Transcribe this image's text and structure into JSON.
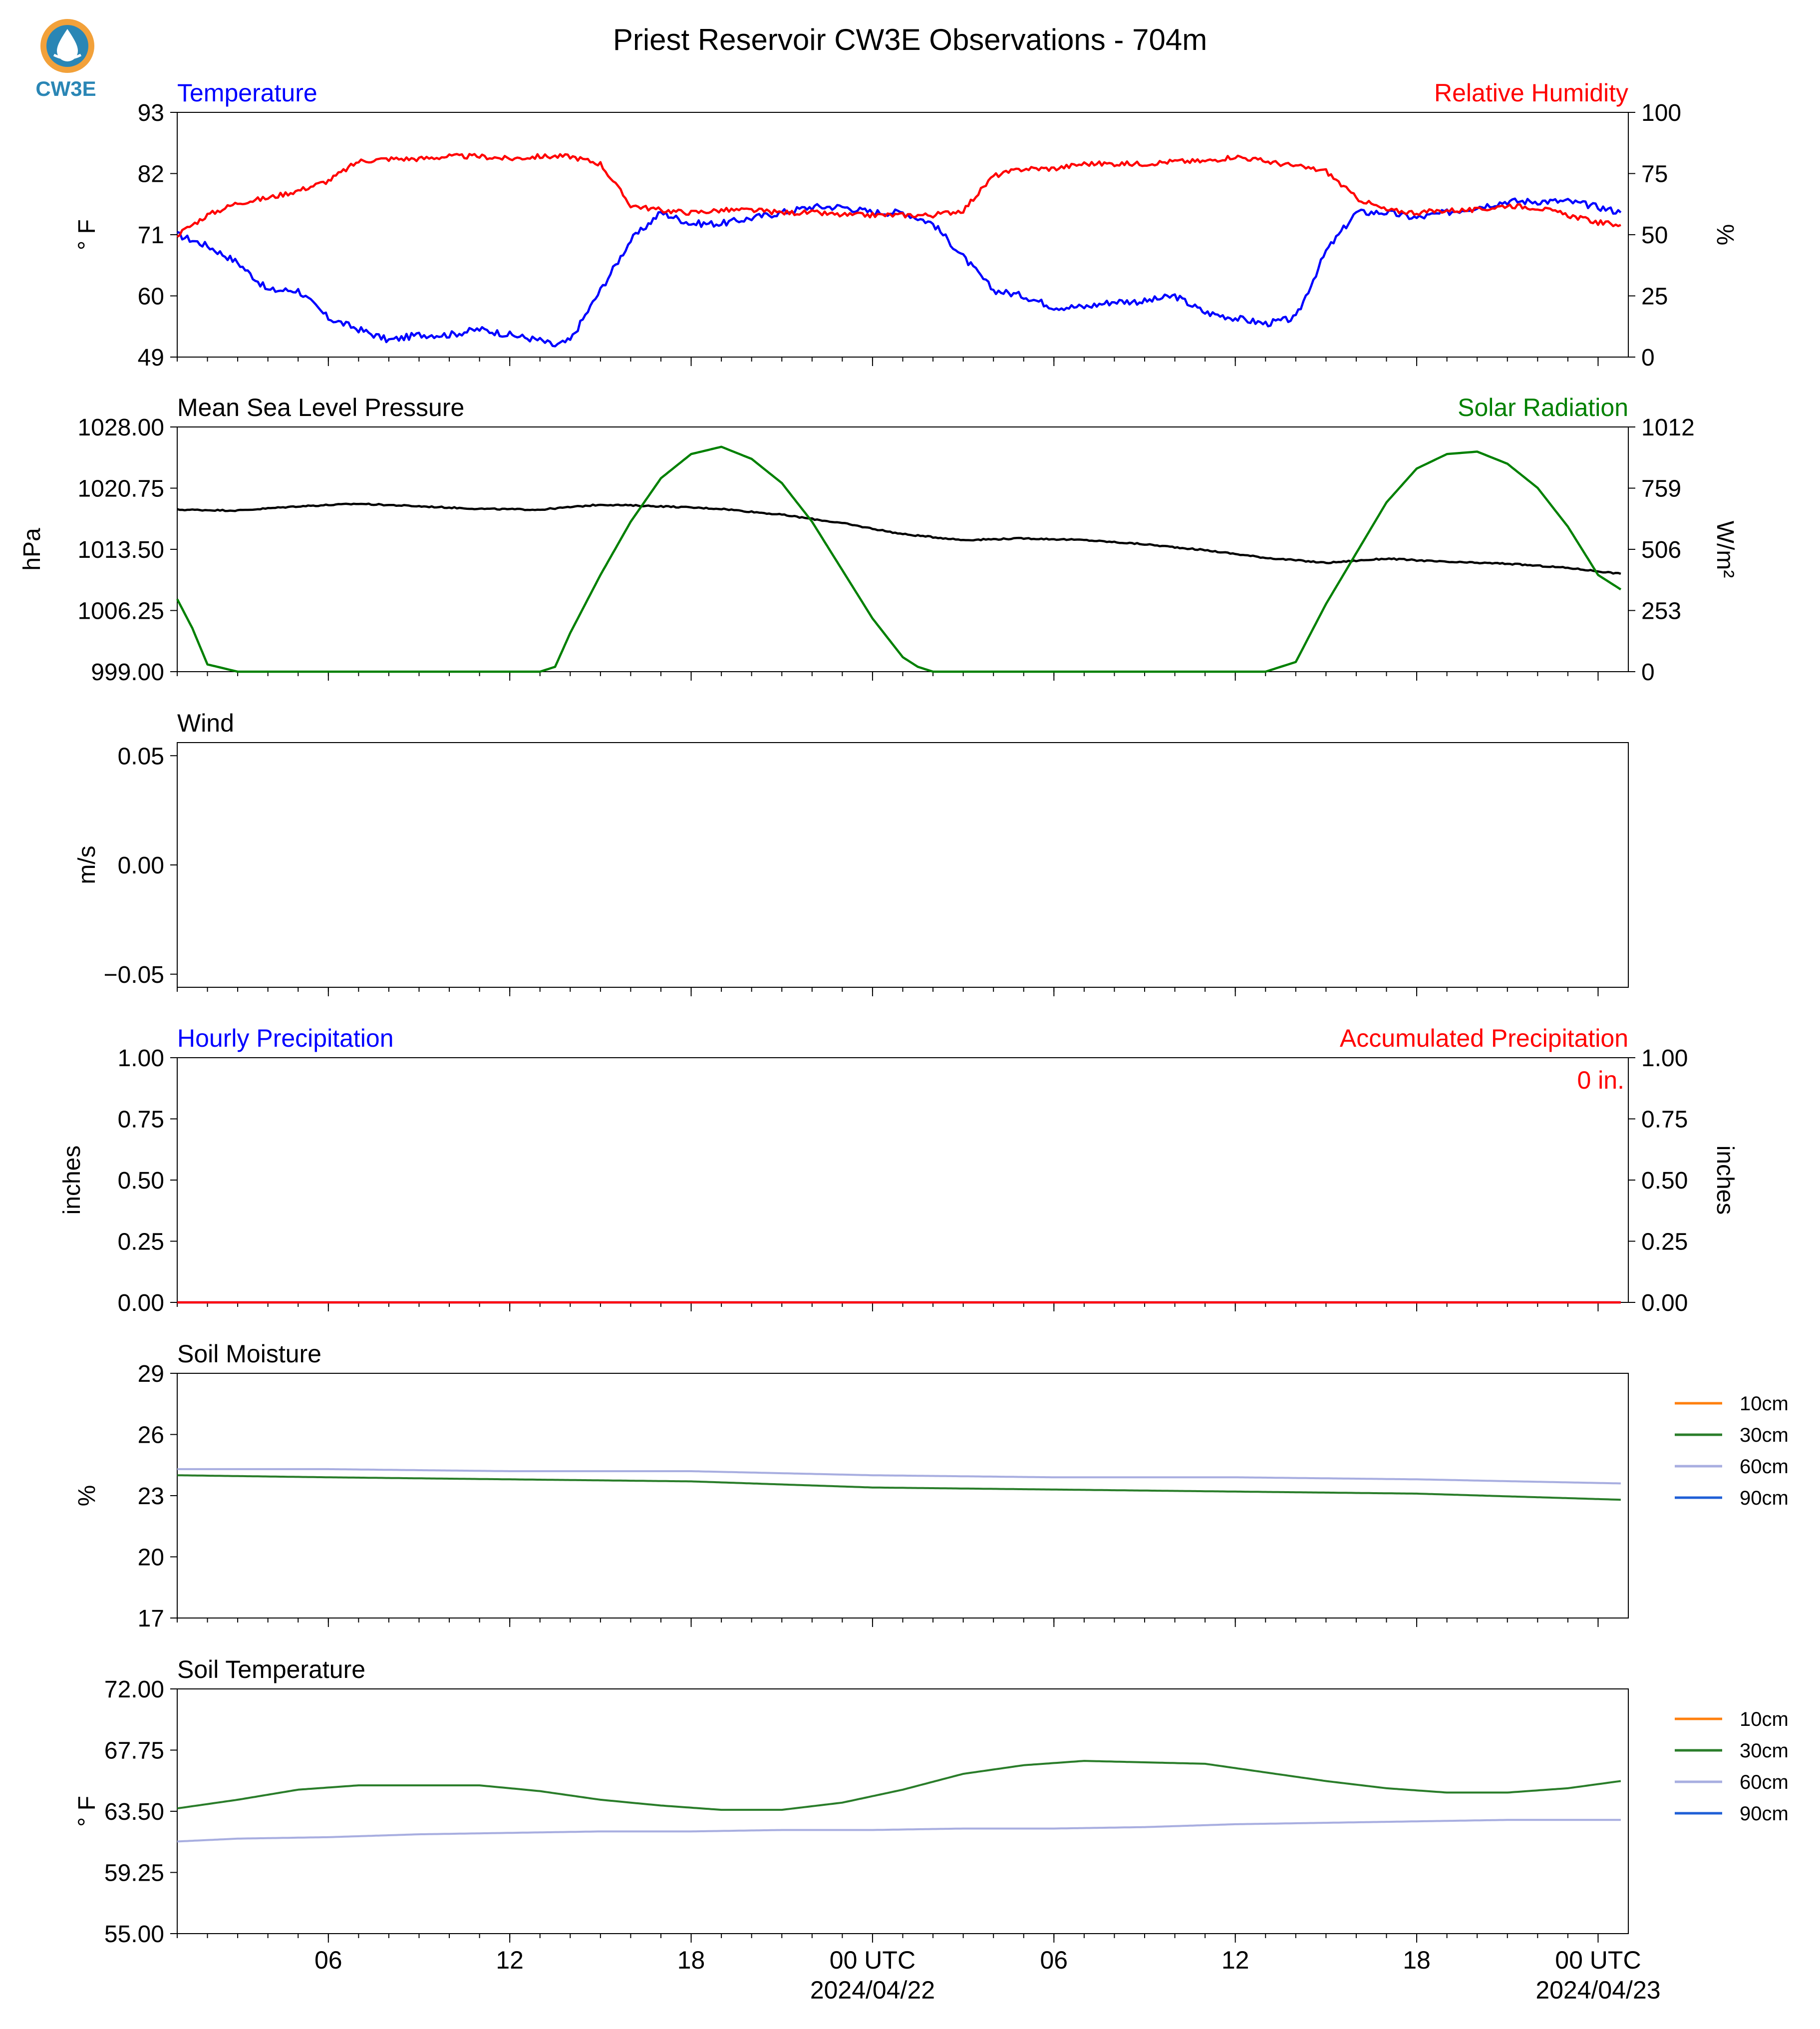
{
  "title": "Priest Reservoir CW3E Observations - 704m",
  "logo": {
    "text": "CW3E",
    "icon": "cw3e-logo-icon",
    "color_orange": "#f2a13a",
    "color_blue": "#2a86b5"
  },
  "x_axis": {
    "start": "2024-04-21T01:00Z",
    "end": "2024-04-23T01:00Z",
    "ticks": [
      {
        "t": "2024-04-21T06:00Z",
        "label": "06",
        "label2": ""
      },
      {
        "t": "2024-04-21T12:00Z",
        "label": "12",
        "label2": ""
      },
      {
        "t": "2024-04-21T18:00Z",
        "label": "18",
        "label2": ""
      },
      {
        "t": "2024-04-22T00:00Z",
        "label": "00 UTC",
        "label2": "2024/04/22"
      },
      {
        "t": "2024-04-22T06:00Z",
        "label": "06",
        "label2": ""
      },
      {
        "t": "2024-04-22T12:00Z",
        "label": "12",
        "label2": ""
      },
      {
        "t": "2024-04-22T18:00Z",
        "label": "18",
        "label2": ""
      },
      {
        "t": "2024-04-23T00:00Z",
        "label": "00 UTC",
        "label2": "2024/04/23"
      }
    ]
  },
  "chart_data": [
    {
      "type": "line",
      "title_left": "Temperature",
      "title_left_color": "#0000ff",
      "title_right": "Relative Humidity",
      "title_right_color": "#ff0000",
      "ylabel": "° F",
      "ylabel_right": "%",
      "ylim": [
        49,
        93
      ],
      "ylim_right": [
        0,
        100
      ],
      "yticks": [
        "93",
        "82",
        "71",
        "60",
        "49"
      ],
      "yticks_right": [
        "100",
        "75",
        "50",
        "25",
        "0"
      ],
      "series": [
        {
          "axis": "left",
          "color": "#0000ff",
          "x": [
            "2024-04-21T01:00Z",
            "2024-04-21T02:00Z",
            "2024-04-21T03:00Z",
            "2024-04-21T04:00Z",
            "2024-04-21T05:00Z",
            "2024-04-21T06:00Z",
            "2024-04-21T07:00Z",
            "2024-04-21T08:00Z",
            "2024-04-21T09:00Z",
            "2024-04-21T10:00Z",
            "2024-04-21T11:00Z",
            "2024-04-21T12:00Z",
            "2024-04-21T13:00Z",
            "2024-04-21T13:30Z",
            "2024-04-21T14:00Z",
            "2024-04-21T15:00Z",
            "2024-04-21T16:00Z",
            "2024-04-21T17:00Z",
            "2024-04-21T18:00Z",
            "2024-04-21T19:00Z",
            "2024-04-21T20:00Z",
            "2024-04-21T21:00Z",
            "2024-04-21T22:00Z",
            "2024-04-21T23:00Z",
            "2024-04-22T00:00Z",
            "2024-04-22T01:00Z",
            "2024-04-22T02:00Z",
            "2024-04-22T03:00Z",
            "2024-04-22T04:00Z",
            "2024-04-22T05:00Z",
            "2024-04-22T06:00Z",
            "2024-04-22T07:00Z",
            "2024-04-22T08:00Z",
            "2024-04-22T09:00Z",
            "2024-04-22T10:00Z",
            "2024-04-22T11:00Z",
            "2024-04-22T12:00Z",
            "2024-04-22T13:00Z",
            "2024-04-22T14:00Z",
            "2024-04-22T15:00Z",
            "2024-04-22T16:00Z",
            "2024-04-22T17:00Z",
            "2024-04-22T18:00Z",
            "2024-04-22T19:00Z",
            "2024-04-22T20:00Z",
            "2024-04-22T21:00Z",
            "2024-04-22T22:00Z",
            "2024-04-22T23:00Z",
            "2024-04-23T00:00Z",
            "2024-04-23T00:45Z"
          ],
          "y": [
            71,
            69,
            66,
            61,
            61,
            56,
            54,
            52,
            53,
            53,
            54,
            53,
            52,
            51,
            52,
            61,
            70,
            75,
            73,
            73,
            74,
            75,
            76,
            76,
            75,
            75,
            73,
            67,
            61,
            60,
            58,
            58,
            59,
            59,
            60,
            57,
            56,
            55,
            56,
            68,
            75,
            75,
            74,
            75,
            76,
            77,
            77,
            77,
            76,
            75
          ]
        },
        {
          "axis": "right",
          "color": "#ff0000",
          "x": [
            "2024-04-21T01:00Z",
            "2024-04-21T02:00Z",
            "2024-04-21T03:00Z",
            "2024-04-21T04:00Z",
            "2024-04-21T05:00Z",
            "2024-04-21T06:00Z",
            "2024-04-21T07:00Z",
            "2024-04-21T08:00Z",
            "2024-04-21T09:00Z",
            "2024-04-21T10:00Z",
            "2024-04-21T11:00Z",
            "2024-04-21T12:00Z",
            "2024-04-21T13:00Z",
            "2024-04-21T14:00Z",
            "2024-04-21T15:00Z",
            "2024-04-21T16:00Z",
            "2024-04-21T17:00Z",
            "2024-04-21T18:00Z",
            "2024-04-21T19:00Z",
            "2024-04-21T20:00Z",
            "2024-04-21T21:00Z",
            "2024-04-21T22:00Z",
            "2024-04-21T23:00Z",
            "2024-04-22T00:00Z",
            "2024-04-22T01:00Z",
            "2024-04-22T02:00Z",
            "2024-04-22T03:00Z",
            "2024-04-22T04:00Z",
            "2024-04-22T05:00Z",
            "2024-04-22T06:00Z",
            "2024-04-22T07:00Z",
            "2024-04-22T08:00Z",
            "2024-04-22T09:00Z",
            "2024-04-22T10:00Z",
            "2024-04-22T11:00Z",
            "2024-04-22T12:00Z",
            "2024-04-22T13:00Z",
            "2024-04-22T14:00Z",
            "2024-04-22T15:00Z",
            "2024-04-22T16:00Z",
            "2024-04-22T17:00Z",
            "2024-04-22T18:00Z",
            "2024-04-22T19:00Z",
            "2024-04-22T20:00Z",
            "2024-04-22T21:00Z",
            "2024-04-22T22:00Z",
            "2024-04-22T23:00Z",
            "2024-04-23T00:00Z",
            "2024-04-23T00:45Z"
          ],
          "y": [
            50,
            58,
            63,
            65,
            68,
            72,
            80,
            81,
            81,
            82,
            82,
            81,
            82,
            82,
            79,
            62,
            60,
            59,
            60,
            60,
            59,
            59,
            58,
            58,
            58,
            58,
            60,
            74,
            77,
            77,
            79,
            79,
            79,
            80,
            80,
            82,
            80,
            78,
            76,
            65,
            60,
            59,
            60,
            60,
            62,
            61,
            58,
            55,
            54
          ]
        }
      ]
    },
    {
      "type": "line",
      "title_left": "Mean Sea Level Pressure",
      "title_left_color": "#000000",
      "title_right": "Solar Radiation",
      "title_right_color": "#008000",
      "ylabel": "hPa",
      "ylabel_right": "W/m²",
      "ylim": [
        999,
        1028
      ],
      "ylim_right": [
        0,
        1012
      ],
      "yticks": [
        "1028.00",
        "1020.75",
        "1013.50",
        "1006.25",
        "999.00"
      ],
      "yticks_right": [
        "1012",
        "759",
        "506",
        "253",
        "0"
      ],
      "series": [
        {
          "axis": "left",
          "color": "#000000",
          "x": [
            "2024-04-21T01:00Z",
            "2024-04-21T03:00Z",
            "2024-04-21T05:00Z",
            "2024-04-21T07:00Z",
            "2024-04-21T09:00Z",
            "2024-04-21T11:00Z",
            "2024-04-21T13:00Z",
            "2024-04-21T15:00Z",
            "2024-04-21T17:00Z",
            "2024-04-21T19:00Z",
            "2024-04-21T21:00Z",
            "2024-04-21T23:00Z",
            "2024-04-22T01:00Z",
            "2024-04-22T03:00Z",
            "2024-04-22T05:00Z",
            "2024-04-22T07:00Z",
            "2024-04-22T09:00Z",
            "2024-04-22T11:00Z",
            "2024-04-22T13:00Z",
            "2024-04-22T15:00Z",
            "2024-04-22T17:00Z",
            "2024-04-22T19:00Z",
            "2024-04-22T21:00Z",
            "2024-04-22T23:00Z",
            "2024-04-23T00:45Z"
          ],
          "y": [
            1018.2,
            1018.1,
            1018.6,
            1018.9,
            1018.6,
            1018.3,
            1018.2,
            1018.8,
            1018.6,
            1018.3,
            1017.6,
            1016.6,
            1015.3,
            1014.6,
            1014.8,
            1014.6,
            1014.1,
            1013.4,
            1012.5,
            1011.9,
            1012.4,
            1012.0,
            1011.8,
            1011.3,
            1010.6
          ]
        },
        {
          "axis": "right",
          "color": "#008000",
          "x": [
            "2024-04-21T01:00Z",
            "2024-04-21T01:30Z",
            "2024-04-21T02:00Z",
            "2024-04-21T03:00Z",
            "2024-04-21T06:00Z",
            "2024-04-21T10:00Z",
            "2024-04-21T13:00Z",
            "2024-04-21T13:30Z",
            "2024-04-21T14:00Z",
            "2024-04-21T15:00Z",
            "2024-04-21T16:00Z",
            "2024-04-21T17:00Z",
            "2024-04-21T18:00Z",
            "2024-04-21T19:00Z",
            "2024-04-21T20:00Z",
            "2024-04-21T21:00Z",
            "2024-04-21T22:00Z",
            "2024-04-21T23:00Z",
            "2024-04-22T00:00Z",
            "2024-04-22T01:00Z",
            "2024-04-22T01:30Z",
            "2024-04-22T02:00Z",
            "2024-04-22T03:00Z",
            "2024-04-22T06:00Z",
            "2024-04-22T10:00Z",
            "2024-04-22T13:00Z",
            "2024-04-22T14:00Z",
            "2024-04-22T14:30Z",
            "2024-04-22T15:00Z",
            "2024-04-22T16:00Z",
            "2024-04-22T17:00Z",
            "2024-04-22T18:00Z",
            "2024-04-22T19:00Z",
            "2024-04-22T20:00Z",
            "2024-04-22T21:00Z",
            "2024-04-22T22:00Z",
            "2024-04-22T23:00Z",
            "2024-04-23T00:00Z",
            "2024-04-23T00:45Z"
          ],
          "y": [
            300,
            180,
            30,
            0,
            0,
            0,
            0,
            20,
            160,
            400,
            620,
            800,
            900,
            930,
            880,
            780,
            620,
            420,
            220,
            60,
            20,
            0,
            0,
            0,
            0,
            0,
            40,
            160,
            280,
            490,
            700,
            840,
            900,
            910,
            860,
            760,
            600,
            400,
            340
          ]
        }
      ]
    },
    {
      "type": "line",
      "title_left": "Wind",
      "title_left_color": "#000000",
      "ylabel": "m/s",
      "ylim": [
        -0.056,
        0.056
      ],
      "yticks": [
        "0.05",
        "0.00",
        "−0.05"
      ],
      "ytick_values": [
        0.05,
        0.0,
        -0.05
      ],
      "series": []
    },
    {
      "type": "line",
      "title_left": "Hourly Precipitation",
      "title_left_color": "#0000ff",
      "title_right": "Accumulated Precipitation",
      "title_right_color": "#ff0000",
      "ylabel": "inches",
      "ylabel_right": "inches",
      "ylim": [
        0,
        1
      ],
      "ylim_right": [
        0,
        1
      ],
      "yticks": [
        "1.00",
        "0.75",
        "0.50",
        "0.25",
        "0.00"
      ],
      "yticks_right": [
        "1.00",
        "0.75",
        "0.50",
        "0.25",
        "0.00"
      ],
      "annotation": "0 in.",
      "annotation_color": "#ff0000",
      "series": [
        {
          "axis": "left",
          "color": "#0000ff",
          "x": [
            "2024-04-21T01:00Z",
            "2024-04-23T00:45Z"
          ],
          "y": [
            0,
            0
          ]
        },
        {
          "axis": "right",
          "color": "#ff0000",
          "x": [
            "2024-04-21T01:00Z",
            "2024-04-23T00:45Z"
          ],
          "y": [
            0,
            0
          ]
        }
      ]
    },
    {
      "type": "line",
      "title_left": "Soil Moisture",
      "title_left_color": "#000000",
      "ylabel": "%",
      "ylim": [
        17,
        29
      ],
      "yticks": [
        "29",
        "26",
        "23",
        "20",
        "17"
      ],
      "legend": [
        "10cm",
        "30cm",
        "60cm",
        "90cm"
      ],
      "legend_colors": [
        "#ff7f0e",
        "#2a7d2a",
        "#a8aee0",
        "#1f5fd6"
      ],
      "series": [
        {
          "name": "60cm",
          "color": "#a8aee0",
          "x": [
            "2024-04-21T01:00Z",
            "2024-04-21T06:00Z",
            "2024-04-21T12:00Z",
            "2024-04-21T18:00Z",
            "2024-04-22T00:00Z",
            "2024-04-22T06:00Z",
            "2024-04-22T12:00Z",
            "2024-04-22T18:00Z",
            "2024-04-23T00:45Z"
          ],
          "y": [
            24.3,
            24.3,
            24.2,
            24.2,
            24.0,
            23.9,
            23.9,
            23.8,
            23.6
          ]
        },
        {
          "name": "30cm",
          "color": "#2a7d2a",
          "x": [
            "2024-04-21T01:00Z",
            "2024-04-21T06:00Z",
            "2024-04-21T12:00Z",
            "2024-04-21T18:00Z",
            "2024-04-22T00:00Z",
            "2024-04-22T06:00Z",
            "2024-04-22T12:00Z",
            "2024-04-22T18:00Z",
            "2024-04-23T00:45Z"
          ],
          "y": [
            24.0,
            23.9,
            23.8,
            23.7,
            23.4,
            23.3,
            23.2,
            23.1,
            22.8
          ]
        }
      ]
    },
    {
      "type": "line",
      "title_left": "Soil Temperature",
      "title_left_color": "#000000",
      "ylabel": "° F",
      "ylim": [
        55,
        72
      ],
      "yticks": [
        "72.00",
        "67.75",
        "63.50",
        "59.25",
        "55.00"
      ],
      "legend": [
        "10cm",
        "30cm",
        "60cm",
        "90cm"
      ],
      "legend_colors": [
        "#ff7f0e",
        "#2a7d2a",
        "#a8aee0",
        "#1f5fd6"
      ],
      "series": [
        {
          "name": "30cm",
          "color": "#2a7d2a",
          "x": [
            "2024-04-21T01:00Z",
            "2024-04-21T03:00Z",
            "2024-04-21T05:00Z",
            "2024-04-21T07:00Z",
            "2024-04-21T11:00Z",
            "2024-04-21T13:00Z",
            "2024-04-21T15:00Z",
            "2024-04-21T17:00Z",
            "2024-04-21T19:00Z",
            "2024-04-21T21:00Z",
            "2024-04-21T23:00Z",
            "2024-04-22T01:00Z",
            "2024-04-22T03:00Z",
            "2024-04-22T05:00Z",
            "2024-04-22T07:00Z",
            "2024-04-22T11:00Z",
            "2024-04-22T13:00Z",
            "2024-04-22T15:00Z",
            "2024-04-22T17:00Z",
            "2024-04-22T19:00Z",
            "2024-04-22T21:00Z",
            "2024-04-22T23:00Z",
            "2024-04-23T00:45Z"
          ],
          "y": [
            63.7,
            64.3,
            65.0,
            65.3,
            65.3,
            64.9,
            64.3,
            63.9,
            63.6,
            63.6,
            64.1,
            65.0,
            66.1,
            66.7,
            67.0,
            66.8,
            66.2,
            65.6,
            65.1,
            64.8,
            64.8,
            65.1,
            65.6
          ]
        },
        {
          "name": "60cm",
          "color": "#a8aee0",
          "x": [
            "2024-04-21T01:00Z",
            "2024-04-21T03:00Z",
            "2024-04-21T06:00Z",
            "2024-04-21T09:00Z",
            "2024-04-21T12:00Z",
            "2024-04-21T15:00Z",
            "2024-04-21T18:00Z",
            "2024-04-21T21:00Z",
            "2024-04-22T00:00Z",
            "2024-04-22T03:00Z",
            "2024-04-22T06:00Z",
            "2024-04-22T09:00Z",
            "2024-04-22T12:00Z",
            "2024-04-22T15:00Z",
            "2024-04-22T18:00Z",
            "2024-04-22T21:00Z",
            "2024-04-23T00:45Z"
          ],
          "y": [
            61.4,
            61.6,
            61.7,
            61.9,
            62.0,
            62.1,
            62.1,
            62.2,
            62.2,
            62.3,
            62.3,
            62.4,
            62.6,
            62.7,
            62.8,
            62.9,
            62.9
          ]
        }
      ]
    }
  ]
}
